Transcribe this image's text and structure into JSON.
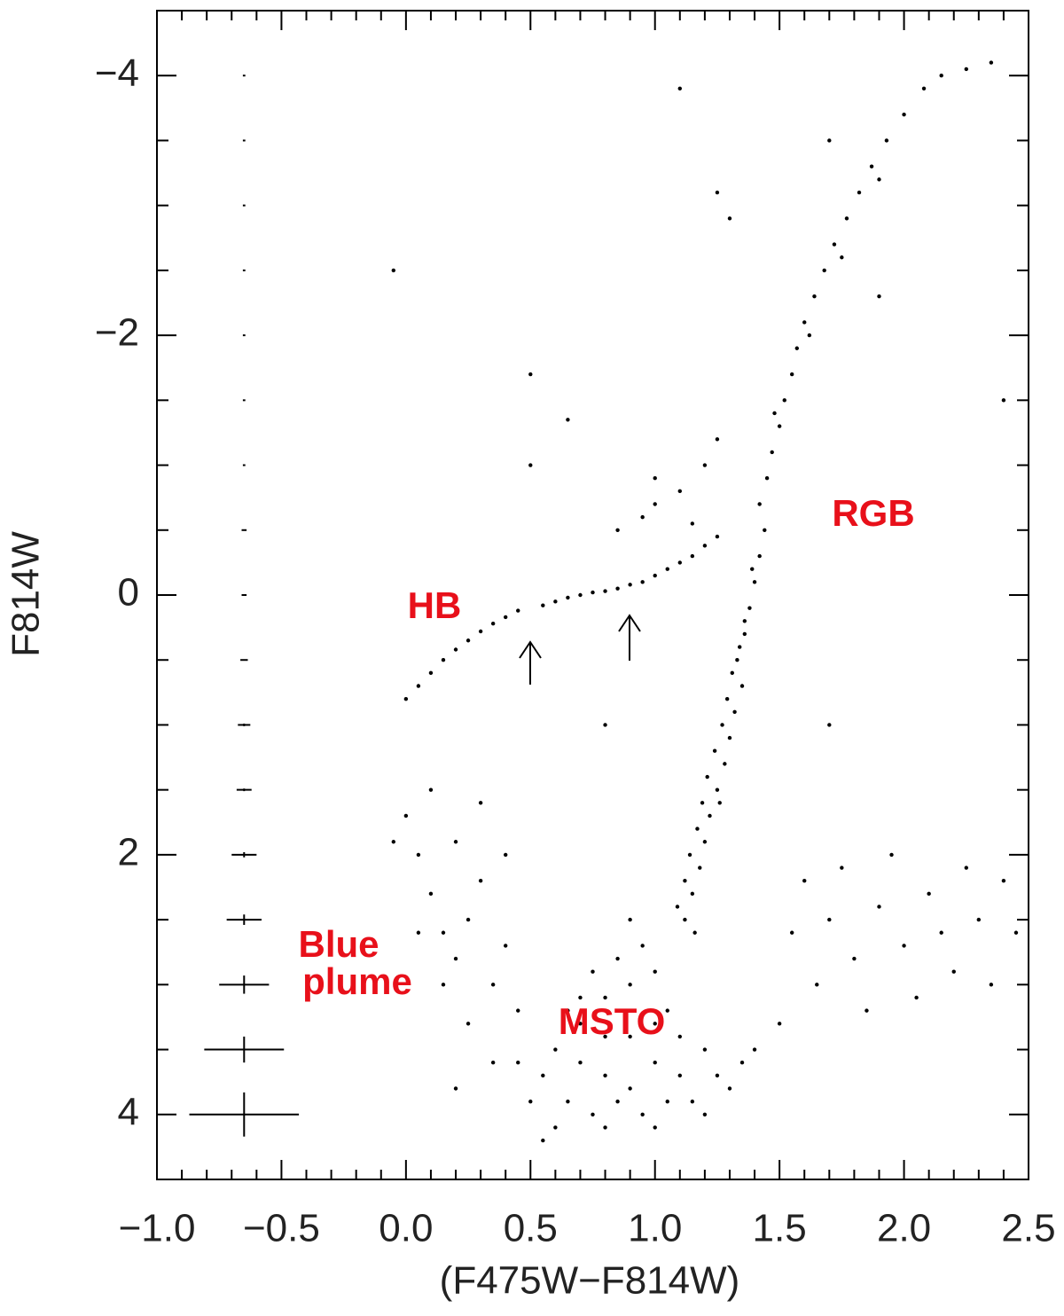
{
  "chart_data": {
    "type": "scatter",
    "xlabel": "(F475W−F814W)",
    "ylabel": "F814W",
    "xlim": [
      -1.0,
      2.5
    ],
    "ylim": [
      -4.5,
      4.5
    ],
    "y_inverted": true,
    "xticks": [
      {
        "value": -1.0,
        "label": "−1.0"
      },
      {
        "value": -0.5,
        "label": "−0.5"
      },
      {
        "value": 0,
        "label": "0.0"
      },
      0.5,
      {
        "value": 1,
        "label": "1.0"
      },
      1.5,
      {
        "value": 2,
        "label": "2.0"
      },
      2.5
    ],
    "xminorticks": [
      -0.9,
      -0.8,
      -0.7,
      -0.6,
      -0.4,
      -0.3,
      -0.2,
      -0.1,
      0.1,
      0.2,
      0.3,
      0.4,
      0.6,
      0.7,
      0.8,
      0.9,
      1.1,
      1.2,
      1.3,
      1.4,
      1.6,
      1.7,
      1.8,
      1.9,
      2.1,
      2.2,
      2.3,
      2.4
    ],
    "yticks": [
      {
        "value": -4,
        "label": "−4"
      },
      {
        "value": -2,
        "label": "−2"
      },
      0,
      2,
      4
    ],
    "yminorticks": [
      -3.5,
      -3,
      -2.5,
      -1.5,
      -1,
      -0.5,
      0.5,
      1,
      1.5,
      2.5,
      3,
      3.5
    ],
    "color": "#000000",
    "x": [
      1.33,
      1.36,
      1.38,
      1.4,
      1.42,
      1.44,
      1.42,
      1.45,
      1.47,
      1.5,
      1.52,
      1.55,
      1.57,
      1.6,
      1.64,
      1.68,
      1.72,
      1.77,
      1.82,
      1.87,
      1.93,
      2.0,
      2.08,
      2.15,
      2.25,
      2.35,
      1.62,
      1.75,
      1.9,
      1.48,
      1.35,
      1.32,
      1.3,
      1.28,
      1.25,
      1.22,
      1.2,
      1.18,
      1.15,
      1.12,
      1.27,
      1.24,
      1.21,
      1.19,
      1.17,
      1.14,
      1.12,
      1.09,
      1.36,
      1.34,
      1.31,
      1.29,
      1.39,
      1.26,
      1.16,
      0.0,
      0.05,
      0.1,
      0.15,
      0.2,
      0.25,
      0.3,
      0.35,
      0.4,
      0.45,
      0.55,
      0.6,
      0.65,
      0.7,
      0.75,
      0.8,
      0.85,
      0.9,
      0.95,
      1.0,
      1.05,
      1.1,
      1.15,
      1.2,
      1.25,
      0.95,
      1.0,
      1.1,
      1.2,
      1.25,
      1.0,
      0.85,
      1.15,
      0.6,
      0.7,
      0.8,
      0.9,
      1.0,
      1.1,
      1.2,
      0.65,
      0.75,
      0.85,
      0.95,
      1.05,
      1.15,
      1.25,
      0.55,
      0.5,
      0.6,
      0.7,
      0.8,
      0.9,
      0.85,
      0.95,
      1.0,
      0.75,
      0.7,
      1.05,
      1.1,
      0.65,
      0.9,
      1.0,
      0.8,
      1.3,
      1.35,
      1.4,
      0.45,
      0.55,
      0.8,
      1.0,
      1.2,
      0.9,
      0.0,
      0.05,
      0.1,
      0.15,
      0.2,
      0.25,
      0.3,
      0.35,
      0.4,
      0.45,
      0.1,
      0.2,
      0.3,
      0.4,
      0.05,
      0.15,
      0.25,
      -0.05,
      0.35,
      0.2,
      1.6,
      1.7,
      1.8,
      1.9,
      2.0,
      2.1,
      2.2,
      2.3,
      2.4,
      1.65,
      1.75,
      1.85,
      1.95,
      2.05,
      2.15,
      2.25,
      2.35,
      2.45,
      1.55,
      1.5,
      -0.05,
      0.5,
      0.5,
      0.65,
      1.1,
      1.25,
      1.3,
      1.7,
      1.9,
      2.4,
      0.8,
      1.7
    ],
    "values": [
      0.5,
      0.3,
      0.1,
      -0.1,
      -0.3,
      -0.5,
      -0.7,
      -0.9,
      -1.1,
      -1.3,
      -1.5,
      -1.7,
      -1.9,
      -2.1,
      -2.3,
      -2.5,
      -2.7,
      -2.9,
      -3.1,
      -3.3,
      -3.5,
      -3.7,
      -3.9,
      -4.0,
      -4.05,
      -4.1,
      -2.0,
      -2.6,
      -3.2,
      -1.4,
      0.7,
      0.9,
      1.1,
      1.3,
      1.5,
      1.7,
      1.9,
      2.1,
      2.3,
      2.5,
      1.0,
      1.2,
      1.4,
      1.6,
      1.8,
      2.0,
      2.2,
      2.4,
      0.2,
      0.4,
      0.6,
      0.8,
      -0.2,
      1.6,
      2.6,
      0.8,
      0.7,
      0.6,
      0.5,
      0.42,
      0.35,
      0.28,
      0.22,
      0.17,
      0.12,
      0.08,
      0.05,
      0.02,
      0.0,
      -0.02,
      -0.03,
      -0.05,
      -0.08,
      -0.1,
      -0.15,
      -0.2,
      -0.25,
      -0.3,
      -0.38,
      -0.45,
      -0.6,
      -0.7,
      -0.8,
      -1.0,
      -1.2,
      -0.9,
      -0.5,
      -0.55,
      3.5,
      3.6,
      3.7,
      3.8,
      3.6,
      3.7,
      3.5,
      3.9,
      4.0,
      3.9,
      4.0,
      3.9,
      3.9,
      3.7,
      3.7,
      3.9,
      4.1,
      3.3,
      3.1,
      3.0,
      2.8,
      2.7,
      2.9,
      2.9,
      3.1,
      3.2,
      3.4,
      3.2,
      3.4,
      3.3,
      3.4,
      3.8,
      3.6,
      3.5,
      3.6,
      4.2,
      4.1,
      4.1,
      4.0,
      2.5,
      1.7,
      2.0,
      2.3,
      2.6,
      2.8,
      2.5,
      2.2,
      3.0,
      2.7,
      3.2,
      1.5,
      1.9,
      1.6,
      2.0,
      2.6,
      3.0,
      3.3,
      1.9,
      3.6,
      3.8,
      2.2,
      2.5,
      2.8,
      2.4,
      2.7,
      2.3,
      2.9,
      2.5,
      2.2,
      3.0,
      2.1,
      3.2,
      2.0,
      3.1,
      2.6,
      2.1,
      3.0,
      2.6,
      2.6,
      3.3,
      -2.5,
      -1.7,
      -1.0,
      -1.35,
      -3.9,
      -3.1,
      -2.9,
      -3.5,
      -2.3,
      -1.5,
      1.0,
      1.0
    ],
    "errorbars": {
      "x": -0.65,
      "y": [
        -4,
        -3.5,
        -3,
        -2.5,
        -2,
        -1.5,
        -1,
        -0.5,
        0,
        0.5,
        1,
        1.5,
        2,
        2.5,
        3,
        3.5,
        4
      ],
      "xerr": [
        0.005,
        0.005,
        0.005,
        0.005,
        0.005,
        0.005,
        0.005,
        0.01,
        0.01,
        0.015,
        0.025,
        0.03,
        0.05,
        0.07,
        0.1,
        0.16,
        0.22
      ],
      "yerr": [
        0.005,
        0.005,
        0.005,
        0.005,
        0.005,
        0.005,
        0.005,
        0.005,
        0.005,
        0.005,
        0.01,
        0.01,
        0.02,
        0.04,
        0.07,
        0.1,
        0.17
      ]
    },
    "annotations": [
      "HB",
      "RGB",
      "MSTO",
      "Blue",
      "plume"
    ]
  }
}
